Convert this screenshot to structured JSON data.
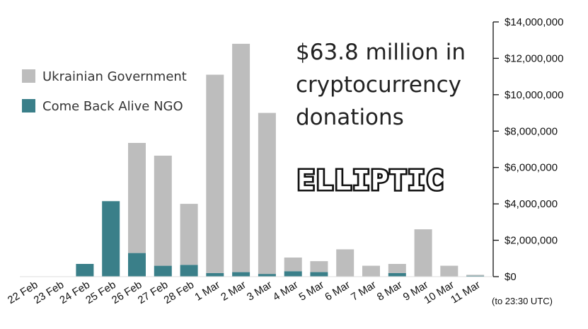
{
  "colors": {
    "government": "#bdbdbd",
    "ngo": "#3a7f89",
    "axis": "#111111"
  },
  "headline": [
    "$63.8 million in",
    "cryptocurrency",
    "donations"
  ],
  "brand": "ELLIPTIC",
  "note": "(to 23:30 UTC)",
  "chart_data": {
    "type": "bar",
    "stacked": true,
    "categories": [
      "22 Feb",
      "23 Feb",
      "24 Feb",
      "25 Feb",
      "26 Feb",
      "27 Feb",
      "28 Feb",
      "1 Mar",
      "2 Mar",
      "3 Mar",
      "4 Mar",
      "5 Mar",
      "6 Mar",
      "7 Mar",
      "8 Mar",
      "9 Mar",
      "10 Mar",
      "11 Mar"
    ],
    "series": [
      {
        "name": "Come Back Alive NGO",
        "color": "#3a7f89",
        "values": [
          10000,
          20000,
          700000,
          4150000,
          1300000,
          600000,
          650000,
          200000,
          250000,
          150000,
          300000,
          250000,
          0,
          0,
          200000,
          0,
          0,
          50000
        ]
      },
      {
        "name": "Ukrainian Government",
        "color": "#bdbdbd",
        "values": [
          0,
          0,
          0,
          0,
          6050000,
          6050000,
          3350000,
          10900000,
          12550000,
          8850000,
          750000,
          600000,
          1500000,
          600000,
          500000,
          2600000,
          600000,
          50000
        ]
      }
    ],
    "legend_order": [
      "Ukrainian Government",
      "Come Back Alive NGO"
    ],
    "legend_position": "top-left",
    "ylim": [
      0,
      14000000
    ],
    "y_ticks": [
      0,
      2000000,
      4000000,
      6000000,
      8000000,
      10000000,
      12000000,
      14000000
    ],
    "y_tick_labels": [
      "$0",
      "$2,000,000",
      "$4,000,000",
      "$6,000,000",
      "$8,000,000",
      "$10,000,000",
      "$12,000,000",
      "$14,000,000"
    ],
    "y_axis_side": "right",
    "grid": false,
    "title": "",
    "xlabel": "",
    "ylabel": ""
  }
}
